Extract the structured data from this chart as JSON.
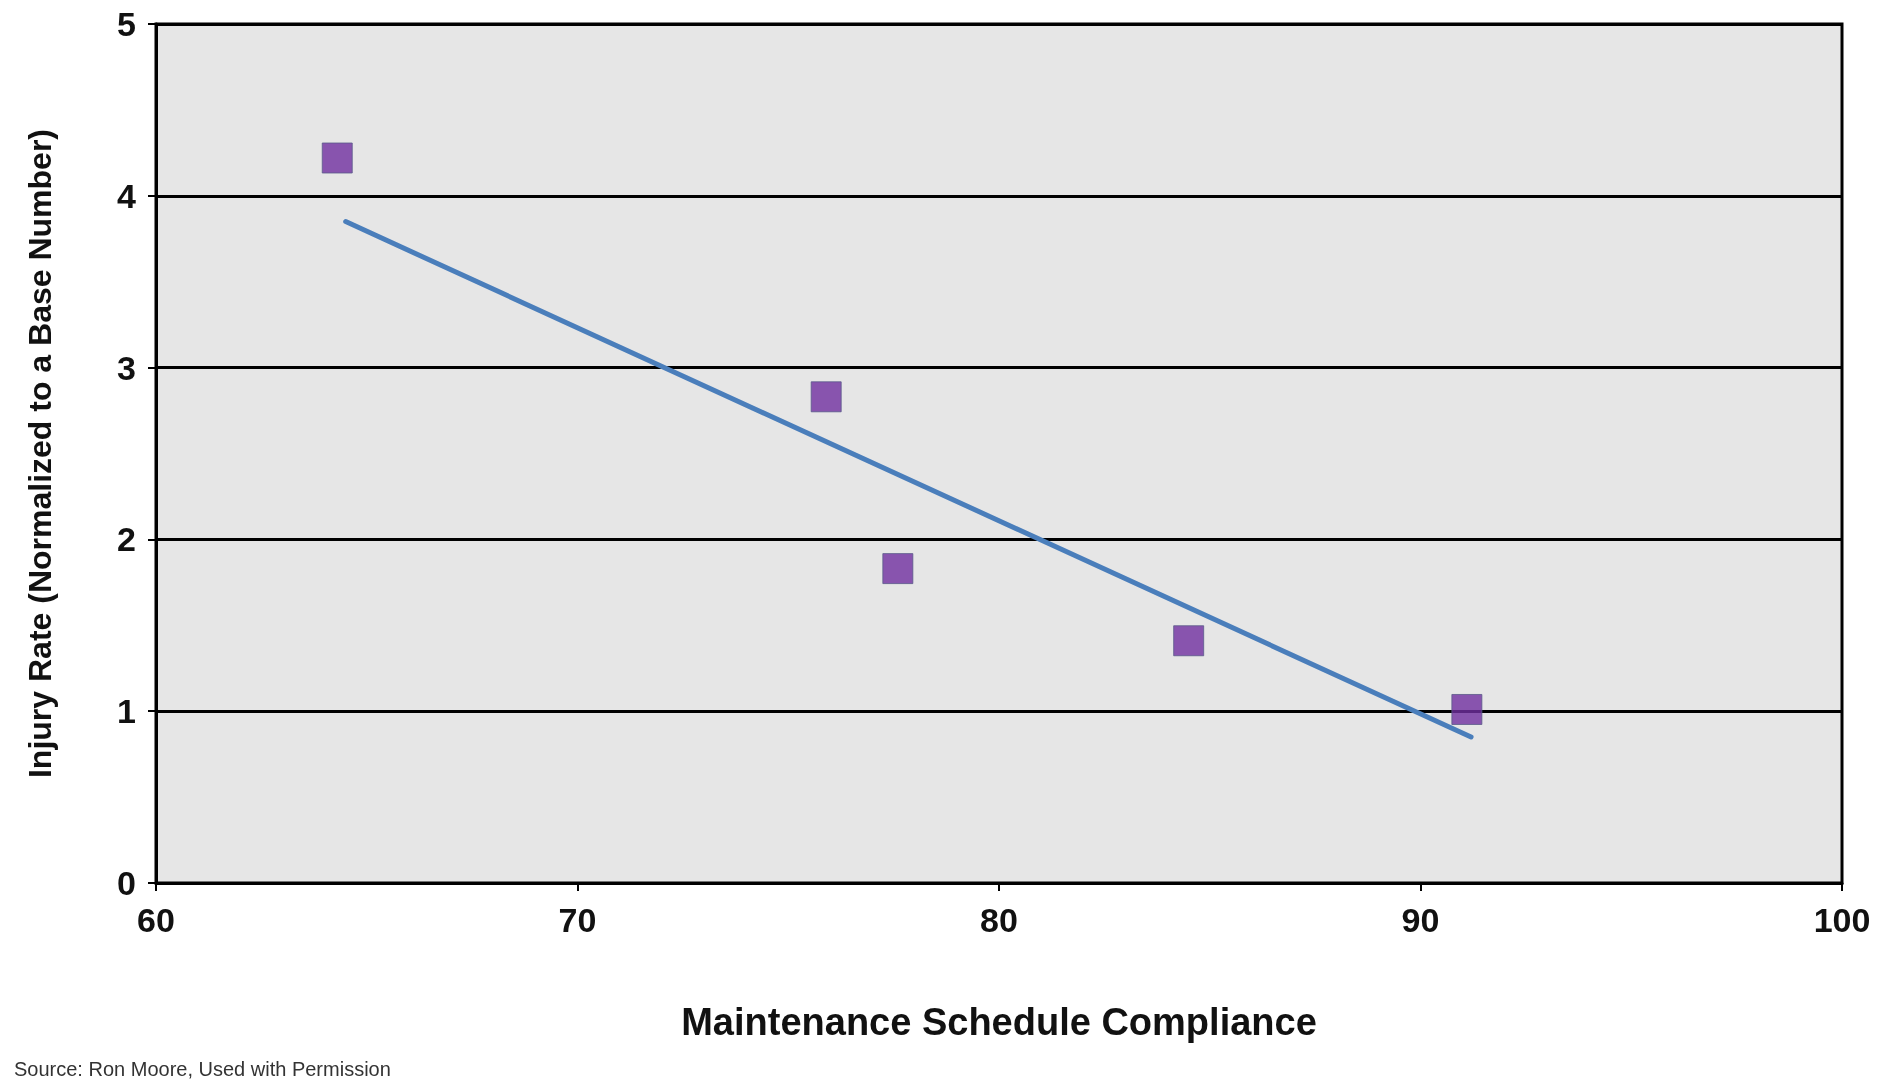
{
  "chart_data": {
    "type": "scatter",
    "xlabel": "Maintenance Schedule Compliance",
    "ylabel": "Injury Rate (Normalized to a Base Number)",
    "series": [
      {
        "color": "#7030a0",
        "marker": "square",
        "x": [
          64.3,
          75.9,
          77.6,
          84.5,
          91.1
        ],
        "values": [
          4.22,
          2.83,
          1.83,
          1.41,
          1.01
        ]
      },
      {
        "type": "line",
        "color": "#4a7ebb",
        "marker": "none",
        "line_style": "solid",
        "x": [
          64.5,
          91.2
        ],
        "values": [
          3.85,
          0.85
        ]
      }
    ],
    "xlim": [
      60,
      100
    ],
    "xticks": [
      60,
      70,
      80,
      90,
      100
    ],
    "ylim": [
      0,
      5
    ],
    "yticks": [
      0,
      1,
      2,
      3,
      4,
      5
    ],
    "grid": "y",
    "annotations": [
      "Source: Ron Moore, Used with Permission"
    ]
  }
}
